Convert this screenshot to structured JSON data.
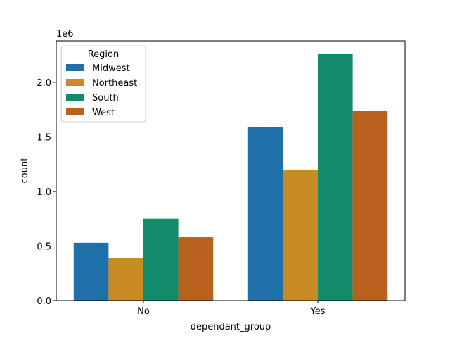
{
  "chart_data": {
    "type": "bar",
    "title": "",
    "xlabel": "dependant_group",
    "ylabel": "count",
    "offset_text": "1e6",
    "categories": [
      "No",
      "Yes"
    ],
    "ylim": [
      0,
      2.38
    ],
    "y_unit_multiplier": 1000000,
    "yticks": [
      0.0,
      0.5,
      1.0,
      1.5,
      2.0
    ],
    "ytick_labels": [
      "0.0",
      "0.5",
      "1.0",
      "1.5",
      "2.0"
    ],
    "grid": false,
    "legend": {
      "title": "Region",
      "placement": "upper-left"
    },
    "series": [
      {
        "name": "Midwest",
        "color": "#1f6fa8",
        "values": [
          0.53,
          1.59
        ]
      },
      {
        "name": "Northeast",
        "color": "#c98a23",
        "values": [
          0.39,
          1.2
        ]
      },
      {
        "name": "South",
        "color": "#138a6a",
        "values": [
          0.75,
          2.26
        ]
      },
      {
        "name": "West",
        "color": "#b8601e",
        "values": [
          0.58,
          1.74
        ]
      }
    ]
  }
}
